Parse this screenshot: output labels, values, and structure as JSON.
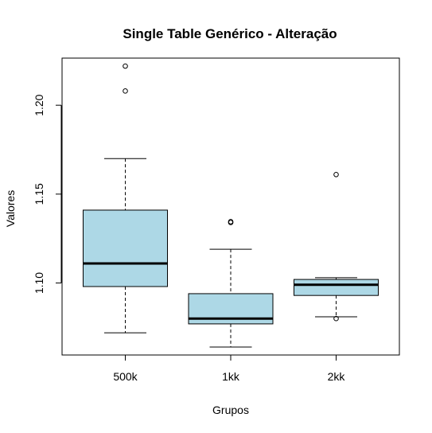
{
  "chart_data": {
    "type": "boxplot",
    "title": "Single Table Genérico - Alteração",
    "xlabel": "Grupos",
    "ylabel": "Valores",
    "ylim": [
      1.0595,
      1.2265
    ],
    "y_ticks": [
      1.1,
      1.15,
      1.2
    ],
    "y_tick_labels": [
      "1.10",
      "1.15",
      "1.20"
    ],
    "box_fill": "#add8e6",
    "categories": [
      "500k",
      "1kk",
      "2kk"
    ],
    "groups": [
      {
        "label": "500k",
        "whisker_low": 1.072,
        "q1": 1.098,
        "median": 1.111,
        "q3": 1.141,
        "whisker_high": 1.17,
        "outliers": [
          1.208,
          1.222
        ]
      },
      {
        "label": "1kk",
        "whisker_low": 1.064,
        "q1": 1.077,
        "median": 1.08,
        "q3": 1.094,
        "whisker_high": 1.119,
        "outliers": [
          1.134,
          1.1345
        ]
      },
      {
        "label": "2kk",
        "whisker_low": 1.081,
        "q1": 1.093,
        "median": 1.099,
        "q3": 1.102,
        "whisker_high": 1.103,
        "outliers": [
          1.08,
          1.161
        ]
      }
    ]
  }
}
